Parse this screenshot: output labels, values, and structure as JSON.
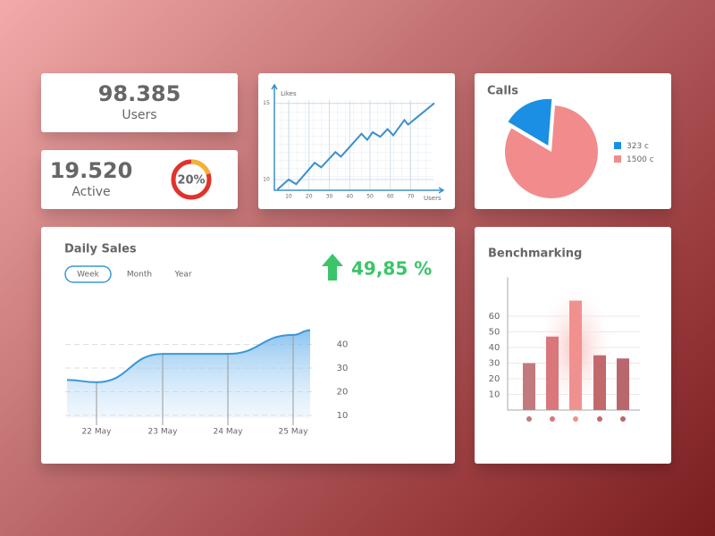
{
  "cards": [
    {
      "value": "98.385",
      "label": "Users"
    },
    {
      "value": "19.520",
      "label": "Active",
      "percent": {
        "value": 20,
        "label": "20%"
      }
    }
  ],
  "chart_data": [
    {
      "type": "line",
      "y_label": "Likes",
      "x_label": "Users",
      "color": "#3a8fc9",
      "x": [
        4.5,
        10,
        13.7,
        22.8,
        26,
        33,
        35.7,
        45.8,
        48.6,
        51.3,
        55,
        58.6,
        61.4,
        66.9,
        68.7,
        73.3,
        81.6
      ],
      "values": [
        9.35,
        10,
        9.7,
        11.1,
        10.8,
        11.8,
        11.5,
        13,
        12.6,
        13.1,
        12.8,
        13.3,
        12.9,
        13.9,
        13.6,
        14.1,
        15
      ],
      "xlim": [
        3,
        86
      ],
      "ylim": [
        9.3,
        16.2
      ],
      "xticks": [
        10,
        20,
        30,
        40,
        50,
        60,
        70
      ],
      "yticks": [
        10,
        15
      ],
      "grid": true
    },
    {
      "type": "pie",
      "title": "Calls",
      "values": [
        323,
        1500
      ],
      "value_labels": [
        "323 c",
        "1500 c"
      ],
      "colors": [
        "#1a8fe3",
        "#f28c8c"
      ]
    },
    {
      "type": "area",
      "title": "Daily Sales",
      "tabs": [
        "Week",
        "Month",
        "Year"
      ],
      "change": "49,85 %",
      "categories": [
        null,
        "22 May",
        "23 May",
        "24 May",
        "25 May",
        null
      ],
      "values": [
        25,
        24,
        36,
        36,
        44,
        46
      ],
      "color": "#3a97d6",
      "ylim": [
        9,
        50
      ],
      "yticks": [
        10,
        20,
        30,
        40
      ],
      "grid": true
    },
    {
      "type": "bar",
      "title": "Benchmarking",
      "values": [
        30,
        47,
        70,
        35,
        33
      ],
      "colors": [
        "#c27a7e",
        "#d9777b",
        "#f0918f",
        "#c2696d",
        "#b9676c"
      ],
      "ylim": [
        0,
        85
      ],
      "yticks": [
        10,
        20,
        30,
        40,
        50,
        60
      ],
      "grid": true
    }
  ]
}
